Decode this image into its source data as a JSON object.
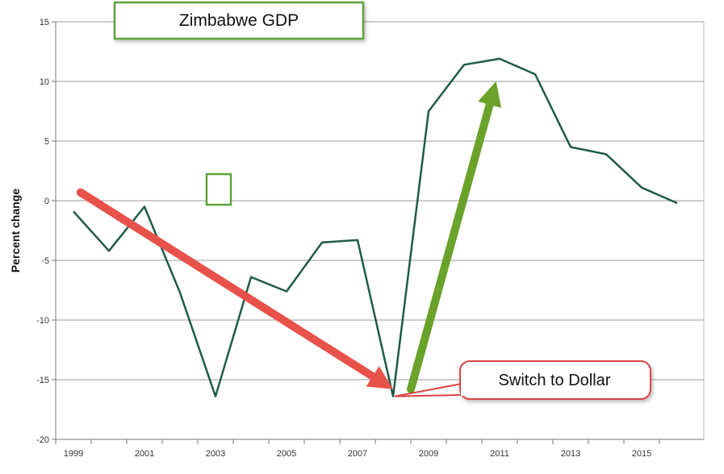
{
  "chart_data": {
    "type": "line",
    "title": "Zimbabwe GDP",
    "xlabel": "",
    "ylabel": "Percent change",
    "x": [
      1999,
      2000,
      2001,
      2002,
      2003,
      2004,
      2005,
      2006,
      2007,
      2008,
      2009,
      2010,
      2011,
      2012,
      2013,
      2014,
      2015,
      2016
    ],
    "series": [
      {
        "values": [
          -0.9,
          -4.2,
          -0.5,
          -7.7,
          -16.4,
          -6.4,
          -7.6,
          -3.5,
          -3.3,
          -16.4,
          7.5,
          11.4,
          11.9,
          10.6,
          4.5,
          3.9,
          1.1,
          -0.2
        ]
      }
    ],
    "x_tick_labels": [
      "1999",
      "2001",
      "2003",
      "2005",
      "2007",
      "2009",
      "2011",
      "2013",
      "2015"
    ],
    "y_ticks": [
      "15",
      "10",
      "5",
      "0",
      "-5",
      "-10",
      "-15",
      "-20"
    ],
    "ylim": [
      -20,
      15
    ],
    "xlim": [
      1998.5,
      2016.75
    ],
    "grid": "horizontal",
    "annotations": {
      "callout_text": "Switch to Dollar",
      "decline_arrow": {
        "from": [
          1999.2,
          0.7
        ],
        "to": [
          2008.0,
          -15.8
        ],
        "color": "#e8524a"
      },
      "recovery_arrow": {
        "from": [
          2008.5,
          -15.8
        ],
        "to": [
          2010.9,
          10.0
        ],
        "color": "#6aa22c"
      },
      "callout_point": [
        2008.0,
        -16.4
      ]
    },
    "colors": {
      "line": "#1f5c45",
      "grid": "#9a9a9a",
      "title_border": "#5ea23a",
      "callout_border": "#d94444"
    }
  }
}
